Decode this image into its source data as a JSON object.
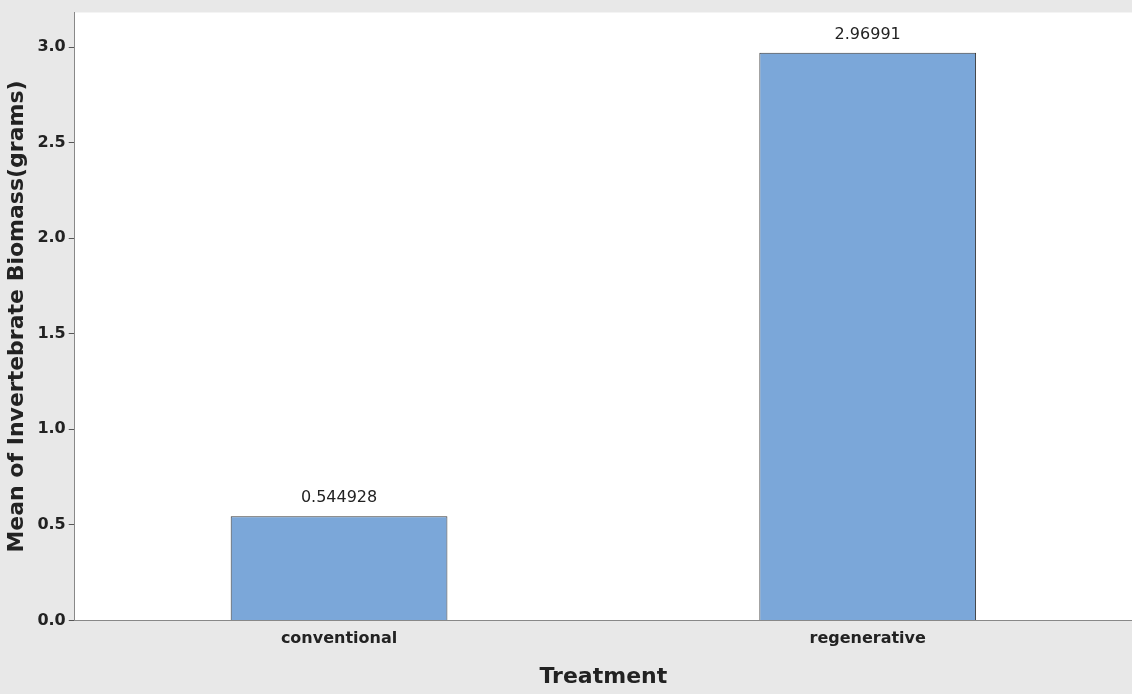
{
  "chart_data": {
    "type": "bar",
    "xlabel": "Treatment",
    "ylabel": "Mean of Invertebrate Biomass(grams)",
    "categories": [
      "conventional",
      "regenerative"
    ],
    "values": [
      0.544928,
      2.96991
    ],
    "color": "#7ba7d9",
    "data_labels": true,
    "ylim": [
      0,
      3.18
    ],
    "yticks": [
      {
        "value": 0,
        "label": "0.0"
      },
      0.5,
      {
        "value": 1,
        "label": "1.0"
      },
      1.5,
      {
        "value": 2,
        "label": "2.0"
      },
      2.5,
      {
        "value": 3,
        "label": "3.0"
      }
    ],
    "grid": false,
    "legend": false
  }
}
